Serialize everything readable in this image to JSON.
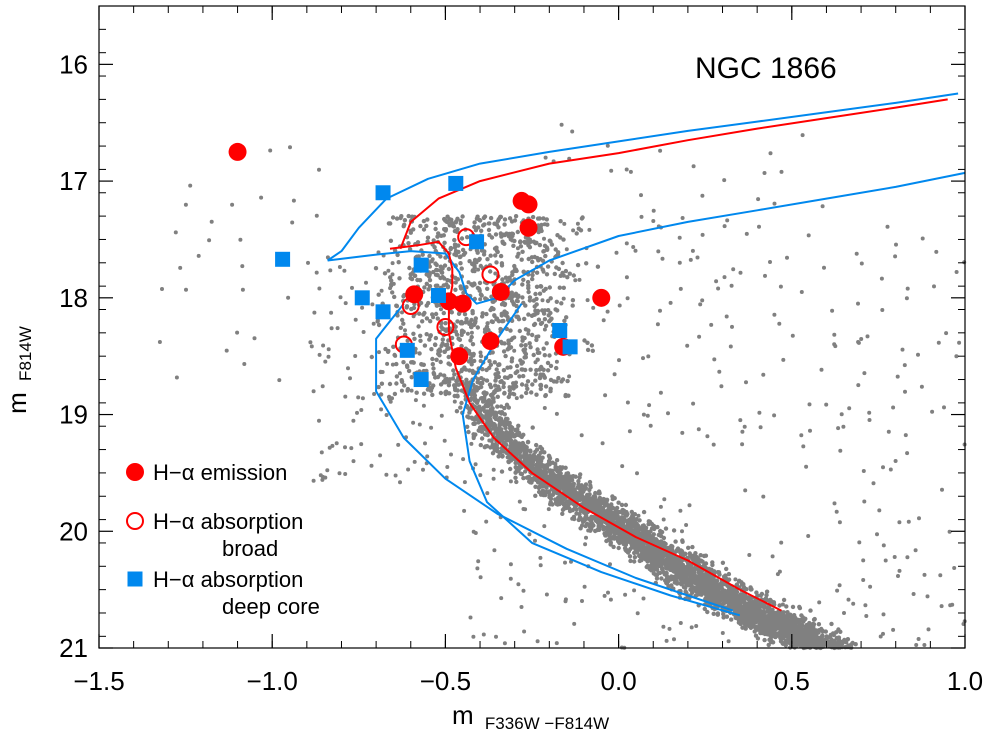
{
  "chart_data": {
    "type": "scatter",
    "title": "NGC 1866",
    "xlabel": {
      "main": "m",
      "sub": "F336W −F814W"
    },
    "ylabel": {
      "main": "m",
      "sub": "F814W"
    },
    "xlim": [
      -1.5,
      1.0
    ],
    "ylim": [
      21.0,
      15.5
    ],
    "y_inverted": true,
    "grid": false,
    "legend_position": "bottom-left",
    "xticks": [
      -1.5,
      -1.0,
      -0.5,
      0.0,
      0.5,
      1.0
    ],
    "xtick_labels": [
      "−1.5",
      "−1.0",
      "−0.5",
      "0.0",
      "0.5",
      "1.0"
    ],
    "yticks": [
      16,
      17,
      18,
      19,
      20,
      21
    ],
    "ytick_labels": [
      "16",
      "17",
      "18",
      "19",
      "20",
      "21"
    ],
    "background_stars": {
      "color": "#808080",
      "description_of_main_sequence": [
        [
          -0.45,
          18.6
        ],
        [
          -0.4,
          18.95
        ],
        [
          -0.3,
          19.3
        ],
        [
          -0.2,
          19.55
        ],
        [
          -0.1,
          19.75
        ],
        [
          0.0,
          19.95
        ],
        [
          0.1,
          20.15
        ],
        [
          0.2,
          20.35
        ],
        [
          0.3,
          20.55
        ],
        [
          0.4,
          20.7
        ],
        [
          0.5,
          20.85
        ],
        [
          0.6,
          21.0
        ]
      ]
    },
    "series": [
      {
        "name": "H−α emission",
        "marker": "filled-circle",
        "color": "#ff0000",
        "points": [
          [
            -1.1,
            16.75
          ],
          [
            -0.28,
            17.17
          ],
          [
            -0.26,
            17.2
          ],
          [
            -0.26,
            17.4
          ],
          [
            -0.59,
            17.97
          ],
          [
            -0.49,
            18.03
          ],
          [
            -0.45,
            18.05
          ],
          [
            -0.34,
            17.95
          ],
          [
            -0.05,
            18.0
          ],
          [
            -0.37,
            18.37
          ],
          [
            -0.46,
            18.5
          ],
          [
            -0.16,
            18.42
          ]
        ]
      },
      {
        "name": "H−α absorption broad",
        "marker": "open-circle",
        "color": "#ff0000",
        "points": [
          [
            -0.44,
            17.48
          ],
          [
            -0.37,
            17.8
          ],
          [
            -0.6,
            18.07
          ],
          [
            -0.5,
            18.25
          ],
          [
            -0.62,
            18.4
          ]
        ]
      },
      {
        "name": "H−α absorption deep core",
        "marker": "filled-square",
        "color": "#0088ee",
        "points": [
          [
            -0.68,
            17.1
          ],
          [
            -0.47,
            17.02
          ],
          [
            -0.41,
            17.52
          ],
          [
            -0.97,
            17.67
          ],
          [
            -0.57,
            17.72
          ],
          [
            -0.74,
            18.0
          ],
          [
            -0.52,
            17.98
          ],
          [
            -0.68,
            18.12
          ],
          [
            -0.17,
            18.28
          ],
          [
            -0.14,
            18.42
          ],
          [
            -0.61,
            18.45
          ],
          [
            -0.57,
            18.7
          ]
        ]
      }
    ],
    "isochrones": [
      {
        "color": "#0088ee",
        "points": [
          [
            -0.84,
            17.68
          ],
          [
            -0.8,
            17.6
          ],
          [
            -0.75,
            17.4
          ],
          [
            -0.67,
            17.15
          ],
          [
            -0.55,
            16.98
          ],
          [
            -0.4,
            16.85
          ],
          [
            -0.2,
            16.75
          ],
          [
            0.0,
            16.66
          ],
          [
            0.2,
            16.57
          ],
          [
            0.4,
            16.49
          ],
          [
            0.6,
            16.41
          ],
          [
            0.8,
            16.33
          ],
          [
            0.98,
            16.25
          ]
        ]
      },
      {
        "color": "#0088ee",
        "points": [
          [
            -0.84,
            17.68
          ],
          [
            -0.7,
            17.63
          ],
          [
            -0.6,
            17.6
          ],
          [
            -0.5,
            17.62
          ],
          [
            -0.46,
            17.78
          ],
          [
            -0.44,
            17.96
          ],
          [
            -0.41,
            18.05
          ],
          [
            -0.35,
            18.0
          ],
          [
            -0.3,
            17.85
          ],
          [
            -0.2,
            17.68
          ],
          [
            0.0,
            17.47
          ],
          [
            0.2,
            17.35
          ],
          [
            0.4,
            17.25
          ],
          [
            0.6,
            17.15
          ],
          [
            0.8,
            17.05
          ],
          [
            1.0,
            16.93
          ]
        ]
      },
      {
        "color": "#0088ee",
        "points": [
          [
            -0.28,
            18.05
          ],
          [
            -0.35,
            18.35
          ],
          [
            -0.42,
            18.7
          ],
          [
            -0.45,
            19.0
          ],
          [
            -0.43,
            19.4
          ],
          [
            -0.38,
            19.75
          ],
          [
            -0.25,
            20.1
          ],
          [
            -0.05,
            20.35
          ],
          [
            0.15,
            20.55
          ],
          [
            0.35,
            20.72
          ]
        ]
      },
      {
        "color": "#0088ee",
        "points": [
          [
            -0.62,
            18.05
          ],
          [
            -0.7,
            18.35
          ],
          [
            -0.7,
            18.8
          ],
          [
            -0.62,
            19.2
          ],
          [
            -0.5,
            19.55
          ],
          [
            -0.35,
            19.85
          ],
          [
            -0.15,
            20.15
          ],
          [
            0.05,
            20.4
          ],
          [
            0.2,
            20.55
          ],
          [
            0.33,
            20.68
          ]
        ]
      },
      {
        "color": "#ff0000",
        "points": [
          [
            -0.49,
            18.3
          ],
          [
            -0.47,
            18.6
          ],
          [
            -0.43,
            18.9
          ],
          [
            -0.36,
            19.2
          ],
          [
            -0.25,
            19.5
          ],
          [
            -0.1,
            19.8
          ],
          [
            0.05,
            20.05
          ],
          [
            0.2,
            20.25
          ],
          [
            0.35,
            20.5
          ],
          [
            0.47,
            20.68
          ]
        ]
      },
      {
        "color": "#ff0000",
        "points": [
          [
            -0.66,
            17.58
          ],
          [
            -0.58,
            17.55
          ],
          [
            -0.52,
            17.52
          ],
          [
            -0.49,
            17.62
          ],
          [
            -0.48,
            17.75
          ],
          [
            -0.48,
            17.9
          ],
          [
            -0.49,
            18.05
          ],
          [
            -0.49,
            18.3
          ]
        ]
      },
      {
        "color": "#ff0000",
        "points": [
          [
            -0.63,
            17.58
          ],
          [
            -0.6,
            17.35
          ],
          [
            -0.52,
            17.15
          ],
          [
            -0.4,
            17.0
          ],
          [
            -0.2,
            16.85
          ],
          [
            0.0,
            16.76
          ],
          [
            0.2,
            16.65
          ],
          [
            0.4,
            16.55
          ],
          [
            0.6,
            16.46
          ],
          [
            0.8,
            16.37
          ],
          [
            0.95,
            16.3
          ]
        ]
      }
    ],
    "legend": [
      {
        "marker": "filled-circle",
        "color": "#ff0000",
        "line1": "H−α emission",
        "line2": ""
      },
      {
        "marker": "open-circle",
        "color": "#ff0000",
        "line1": "H−α absorption",
        "line2": "broad"
      },
      {
        "marker": "filled-square",
        "color": "#0088ee",
        "line1": "H−α absorption",
        "line2": "deep core"
      }
    ]
  }
}
